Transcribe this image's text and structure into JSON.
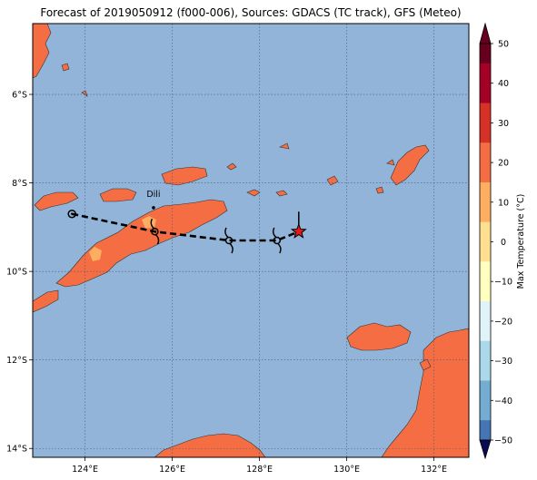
{
  "title": "Forecast of 2019050912 (f000-006), Sources: GDACS (TC track), GFS (Meteo)",
  "map": {
    "lon_range": [
      122.8,
      132.8
    ],
    "lat_range": [
      -14.2,
      -4.4
    ],
    "lon_ticks": [
      {
        "value": 124,
        "label": "124°E"
      },
      {
        "value": 126,
        "label": "126°E"
      },
      {
        "value": 128,
        "label": "128°E"
      },
      {
        "value": 130,
        "label": "130°E"
      },
      {
        "value": 132,
        "label": "132°E"
      }
    ],
    "lat_ticks": [
      {
        "value": -6,
        "label": "6°S"
      },
      {
        "value": -8,
        "label": "8°S"
      },
      {
        "value": -10,
        "label": "10°S"
      },
      {
        "value": -12,
        "label": "12°S"
      },
      {
        "value": -14,
        "label": "14°S"
      }
    ],
    "ocean_color": "#91b4d8",
    "land_color": "#f46d43",
    "land_warm_color": "#fdae61",
    "grid": "dotted",
    "city": {
      "name": "Dili",
      "lon": 125.57,
      "lat": -8.56
    },
    "track": [
      {
        "lon": 123.7,
        "lat": -8.7,
        "symbol": "circle"
      },
      {
        "lon": 125.6,
        "lat": -9.1,
        "symbol": "tc"
      },
      {
        "lon": 127.3,
        "lat": -9.3,
        "symbol": "tc"
      },
      {
        "lon": 128.4,
        "lat": -9.3,
        "symbol": "tc"
      },
      {
        "lon": 128.9,
        "lat": -9.1,
        "symbol": "star"
      }
    ]
  },
  "colorbar": {
    "label": "Max Temperature (°C)",
    "ticks": [
      "50",
      "40",
      "30",
      "20",
      "10",
      "0",
      "−10",
      "−20",
      "−30",
      "−40",
      "−50"
    ],
    "bands": [
      "#67001f",
      "#a50026",
      "#d73027",
      "#f46d43",
      "#fdae61",
      "#fee090",
      "#ffffbf",
      "#e0f3f8",
      "#abd9e9",
      "#74add1",
      "#4575b4",
      "#313695",
      "#1a1a70"
    ],
    "extend_top_color": "#67001f",
    "extend_bottom_color": "#0b0b55"
  }
}
